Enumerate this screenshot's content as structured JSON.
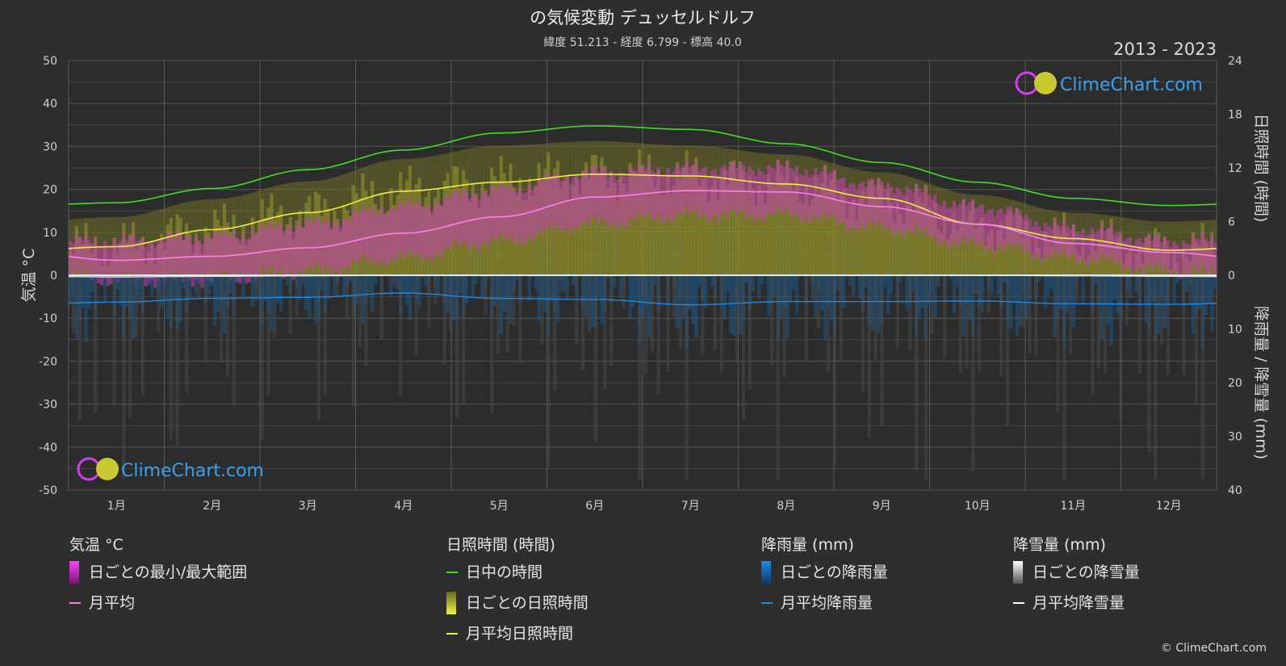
{
  "title": "の気候変動 デュッセルドルフ",
  "subtitle": "緯度 51.213 - 経度 6.799 - 標高 40.0",
  "year_range": "2013 - 2023",
  "watermark": "ClimeChart.com",
  "copyright": "© ClimeChart.com",
  "colors": {
    "background": "#2e2e2e",
    "daylight": "#44dd22",
    "sunshine_avg": "#f0f040",
    "sunshine_fill": "#a8a830",
    "temp_avg": "#ff7ff0",
    "temp_range": "#e040c8",
    "rain": "#1e88e5",
    "snow": "#ffffff",
    "watermark": "#3aa0f0"
  },
  "chart_data": {
    "type": "line",
    "categories": [
      "1月",
      "2月",
      "3月",
      "4月",
      "5月",
      "6月",
      "7月",
      "8月",
      "9月",
      "10月",
      "11月",
      "12月"
    ],
    "y_left": {
      "label": "気温 °C",
      "ylim": [
        -50,
        50
      ],
      "ticks": [
        50,
        40,
        30,
        20,
        10,
        0,
        -10,
        -20,
        -30,
        -40,
        -50
      ]
    },
    "y_right_top": {
      "label": "日照時間 (時間)",
      "ylim": [
        0,
        24
      ],
      "ticks": [
        24,
        18,
        12,
        6,
        0
      ]
    },
    "y_right_bottom": {
      "label": "降雨量 / 降雪量 (mm)",
      "ylim": [
        0,
        40
      ],
      "ticks": [
        10,
        20,
        30,
        40
      ]
    },
    "grid": true,
    "series": [
      {
        "name": "日中の時間",
        "axis": "sunshine",
        "values": [
          8.1,
          9.7,
          11.8,
          14.0,
          15.9,
          16.7,
          16.3,
          14.7,
          12.6,
          10.4,
          8.6,
          7.8
        ]
      },
      {
        "name": "月平均日照時間",
        "axis": "sunshine",
        "values": [
          3.2,
          5.1,
          7.0,
          9.4,
          10.4,
          11.3,
          11.1,
          10.2,
          8.6,
          5.7,
          4.1,
          2.8
        ]
      },
      {
        "name": "月平均",
        "axis": "temp",
        "values": [
          3.5,
          4.4,
          6.4,
          9.8,
          13.6,
          18.2,
          19.7,
          19.4,
          16.0,
          11.9,
          7.4,
          5.3
        ]
      },
      {
        "name": "月平均降雨量",
        "axis": "precip",
        "values": [
          5.0,
          4.3,
          4.1,
          3.3,
          4.3,
          4.5,
          5.5,
          4.9,
          4.9,
          4.8,
          5.3,
          5.4
        ]
      },
      {
        "name": "月平均降雪量",
        "axis": "precip",
        "values": [
          0.3,
          0.2,
          0.1,
          0,
          0,
          0,
          0,
          0,
          0,
          0,
          0.1,
          0.2
        ]
      }
    ],
    "daily_temp_max": [
      8,
      9,
      12,
      16,
      20,
      24,
      25,
      25,
      21,
      16,
      11,
      8
    ],
    "daily_temp_min": [
      -1,
      -1,
      1,
      4,
      8,
      12,
      14,
      14,
      11,
      7,
      4,
      1
    ],
    "daily_sunshine_max": [
      6.5,
      8.5,
      10.5,
      13,
      14.5,
      15,
      14.5,
      13.5,
      11.5,
      9,
      7,
      6
    ]
  },
  "legend": {
    "temp": {
      "heading": "気温 °C",
      "range": "日ごとの最小/最大範囲",
      "avg": "月平均"
    },
    "sun": {
      "heading": "日照時間 (時間)",
      "daylight": "日中の時間",
      "daily": "日ごとの日照時間",
      "avg": "月平均日照時間"
    },
    "rain": {
      "heading": "降雨量 (mm)",
      "daily": "日ごとの降雨量",
      "avg": "月平均降雨量"
    },
    "snow": {
      "heading": "降雪量 (mm)",
      "daily": "日ごとの降雪量",
      "avg": "月平均降雪量"
    }
  }
}
